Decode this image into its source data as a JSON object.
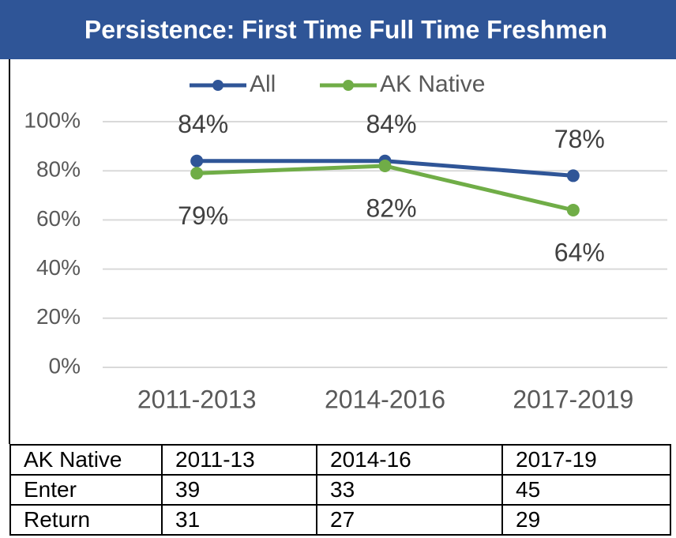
{
  "chart_data": {
    "type": "line",
    "title": "Persistence: First Time Full Time Freshmen",
    "categories": [
      "2011-2013",
      "2014-2016",
      "2017-2019"
    ],
    "series": [
      {
        "name": "All",
        "color": "#2f5597",
        "values": [
          84,
          84,
          78
        ],
        "value_labels": [
          "84%",
          "84%",
          "78%"
        ]
      },
      {
        "name": "AK Native",
        "color": "#70ad47",
        "values": [
          79,
          82,
          64
        ],
        "value_labels": [
          "79%",
          "82%",
          "64%"
        ]
      }
    ],
    "ylim": [
      0,
      100
    ],
    "yticks": [
      {
        "value": 0,
        "label": "0%"
      },
      {
        "value": 20,
        "label": "20%"
      },
      {
        "value": 40,
        "label": "40%"
      },
      {
        "value": 60,
        "label": "60%"
      },
      {
        "value": 80,
        "label": "80%"
      },
      {
        "value": 100,
        "label": "100%"
      }
    ],
    "grid": true,
    "legend": "top"
  },
  "table": {
    "header": [
      "AK Native",
      "2011-13",
      "2014-16",
      "2017-19"
    ],
    "rows": [
      [
        "Enter",
        "39",
        "33",
        "45"
      ],
      [
        "Return",
        "31",
        "27",
        "29"
      ]
    ]
  }
}
